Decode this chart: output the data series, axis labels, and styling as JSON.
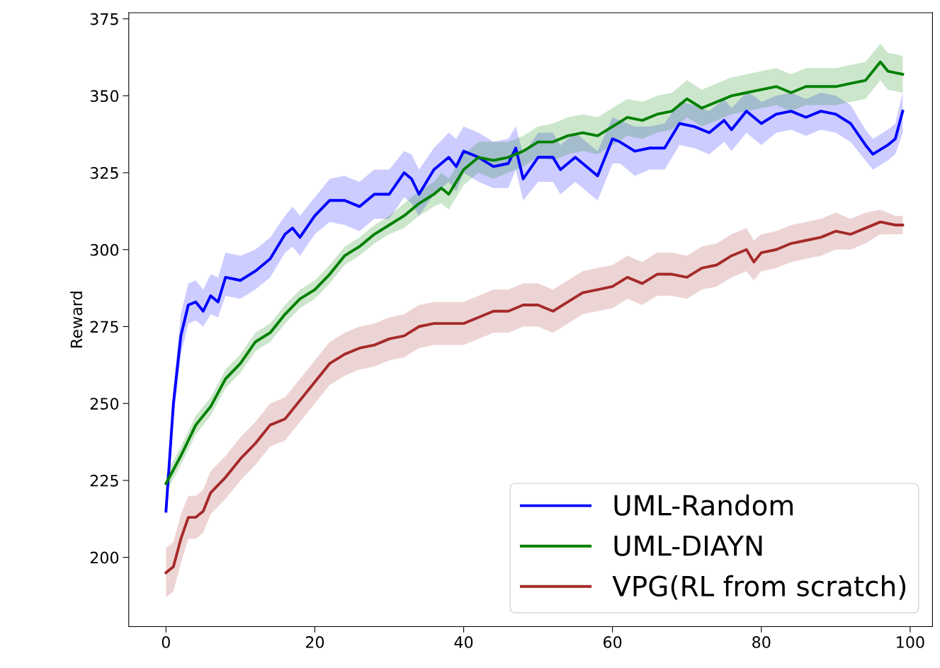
{
  "chart_data": {
    "type": "line",
    "ylabel": "Reward",
    "xlim": [
      -5,
      103
    ],
    "ylim": [
      177.5,
      377
    ],
    "xticks": [
      0,
      20,
      40,
      60,
      80,
      100
    ],
    "yticks": [
      200,
      225,
      250,
      275,
      300,
      325,
      350,
      375
    ],
    "grid": false,
    "legend": "bottom right",
    "series": [
      {
        "name": "UML-Random",
        "color": "#0000ff",
        "x": [
          0,
          1,
          2,
          3,
          4,
          5,
          6,
          7,
          8,
          10,
          12,
          14,
          16,
          17,
          18,
          20,
          22,
          24,
          26,
          28,
          30,
          32,
          33,
          34,
          36,
          38,
          39,
          40,
          42,
          44,
          46,
          47,
          48,
          50,
          52,
          53,
          55,
          56,
          58,
          60,
          61,
          63,
          65,
          67,
          69,
          71,
          73,
          75,
          76,
          78,
          79,
          80,
          82,
          84,
          86,
          88,
          90,
          92,
          94,
          95,
          97,
          98,
          99
        ],
        "values": [
          215,
          250,
          272,
          282,
          283,
          280,
          285,
          283,
          291,
          290,
          293,
          297,
          305,
          307,
          304,
          311,
          316,
          316,
          314,
          318,
          318,
          325,
          323,
          318,
          326,
          330,
          327,
          332,
          330,
          327,
          328,
          333,
          323,
          330,
          330,
          326,
          330,
          328,
          324,
          336,
          335,
          332,
          333,
          333,
          341,
          340,
          338,
          342,
          339,
          345,
          343,
          341,
          344,
          345,
          343,
          345,
          344,
          341,
          334,
          331,
          334,
          336,
          345
        ],
        "lower": [
          213,
          245,
          266,
          276,
          277,
          275,
          279,
          278,
          285,
          284,
          287,
          291,
          299,
          301,
          298,
          305,
          309,
          308,
          306,
          310,
          310,
          317,
          315,
          311,
          318,
          322,
          319,
          325,
          322,
          320,
          320,
          326,
          316,
          322,
          322,
          318,
          322,
          320,
          316,
          328,
          328,
          324,
          326,
          326,
          334,
          333,
          331,
          335,
          332,
          338,
          336,
          334,
          338,
          339,
          337,
          339,
          338,
          335,
          329,
          326,
          329,
          331,
          338
        ],
        "upper": [
          218,
          255,
          279,
          289,
          290,
          287,
          292,
          291,
          299,
          298,
          300,
          304,
          311,
          314,
          311,
          317,
          323,
          324,
          322,
          326,
          326,
          332,
          331,
          326,
          333,
          338,
          336,
          340,
          338,
          335,
          336,
          340,
          331,
          338,
          338,
          334,
          338,
          336,
          332,
          343,
          342,
          340,
          340,
          341,
          348,
          347,
          345,
          349,
          346,
          351,
          350,
          348,
          350,
          351,
          349,
          351,
          350,
          347,
          339,
          336,
          339,
          341,
          351
        ]
      },
      {
        "name": "UML-DIAYN",
        "color": "#008000",
        "x": [
          0,
          2,
          4,
          6,
          8,
          10,
          12,
          14,
          16,
          18,
          20,
          22,
          24,
          26,
          28,
          30,
          32,
          34,
          36,
          37,
          38,
          40,
          42,
          44,
          46,
          48,
          50,
          52,
          54,
          56,
          58,
          60,
          62,
          64,
          66,
          68,
          70,
          72,
          74,
          76,
          78,
          80,
          82,
          84,
          86,
          88,
          90,
          92,
          94,
          96,
          97,
          99
        ],
        "values": [
          224,
          233,
          243,
          249,
          258,
          263,
          270,
          273,
          279,
          284,
          287,
          292,
          298,
          301,
          305,
          308,
          311,
          315,
          318,
          320,
          318,
          326,
          330,
          329,
          330,
          332,
          335,
          335,
          337,
          338,
          337,
          340,
          343,
          342,
          344,
          345,
          349,
          346,
          348,
          350,
          351,
          352,
          353,
          351,
          353,
          353,
          353,
          354,
          355,
          361,
          358,
          357
        ],
        "lower": [
          221,
          230,
          240,
          246,
          255,
          260,
          267,
          270,
          276,
          281,
          284,
          289,
          295,
          298,
          302,
          305,
          307,
          311,
          314,
          315,
          313,
          321,
          325,
          323,
          325,
          327,
          330,
          329,
          331,
          332,
          331,
          334,
          337,
          336,
          338,
          339,
          343,
          340,
          342,
          344,
          345,
          346,
          347,
          345,
          347,
          347,
          347,
          348,
          349,
          355,
          352,
          351
        ],
        "upper": [
          227,
          236,
          246,
          252,
          261,
          266,
          273,
          276,
          282,
          287,
          290,
          295,
          301,
          304,
          308,
          311,
          315,
          319,
          322,
          325,
          323,
          331,
          335,
          335,
          335,
          337,
          340,
          341,
          343,
          344,
          343,
          346,
          349,
          348,
          350,
          351,
          355,
          352,
          354,
          356,
          357,
          358,
          359,
          357,
          359,
          359,
          359,
          360,
          361,
          367,
          364,
          363
        ]
      },
      {
        "name": "VPG(RL from scratch)",
        "color": "#a52a2a",
        "x": [
          0,
          1,
          2,
          3,
          4,
          5,
          6,
          8,
          10,
          12,
          14,
          16,
          18,
          20,
          22,
          24,
          26,
          28,
          30,
          32,
          34,
          36,
          38,
          40,
          42,
          44,
          46,
          48,
          50,
          52,
          54,
          56,
          58,
          60,
          62,
          64,
          66,
          68,
          70,
          72,
          74,
          76,
          78,
          79,
          80,
          82,
          84,
          86,
          88,
          90,
          92,
          94,
          96,
          98,
          99
        ],
        "values": [
          195,
          197,
          206,
          213,
          213,
          215,
          221,
          226,
          232,
          237,
          243,
          245,
          251,
          257,
          263,
          266,
          268,
          269,
          271,
          272,
          275,
          276,
          276,
          276,
          278,
          280,
          280,
          282,
          282,
          280,
          283,
          286,
          287,
          288,
          291,
          289,
          292,
          292,
          291,
          294,
          295,
          298,
          300,
          296,
          299,
          300,
          302,
          303,
          304,
          306,
          305,
          307,
          309,
          308,
          308
        ],
        "lower": [
          187,
          189,
          198,
          206,
          206,
          208,
          214,
          219,
          225,
          230,
          236,
          238,
          244,
          250,
          256,
          259,
          261,
          262,
          264,
          265,
          268,
          269,
          269,
          269,
          271,
          273,
          273,
          275,
          275,
          273,
          276,
          279,
          280,
          281,
          284,
          282,
          285,
          285,
          284,
          287,
          288,
          291,
          293,
          290,
          293,
          294,
          296,
          297,
          298,
          300,
          300,
          302,
          305,
          305,
          305
        ],
        "upper": [
          203,
          205,
          214,
          220,
          220,
          222,
          228,
          233,
          239,
          244,
          250,
          252,
          258,
          264,
          270,
          273,
          275,
          276,
          278,
          279,
          282,
          283,
          283,
          283,
          285,
          287,
          287,
          289,
          289,
          287,
          290,
          293,
          294,
          295,
          298,
          296,
          299,
          299,
          298,
          301,
          302,
          305,
          307,
          303,
          305,
          306,
          308,
          309,
          310,
          312,
          310,
          312,
          313,
          311,
          311
        ]
      }
    ]
  }
}
